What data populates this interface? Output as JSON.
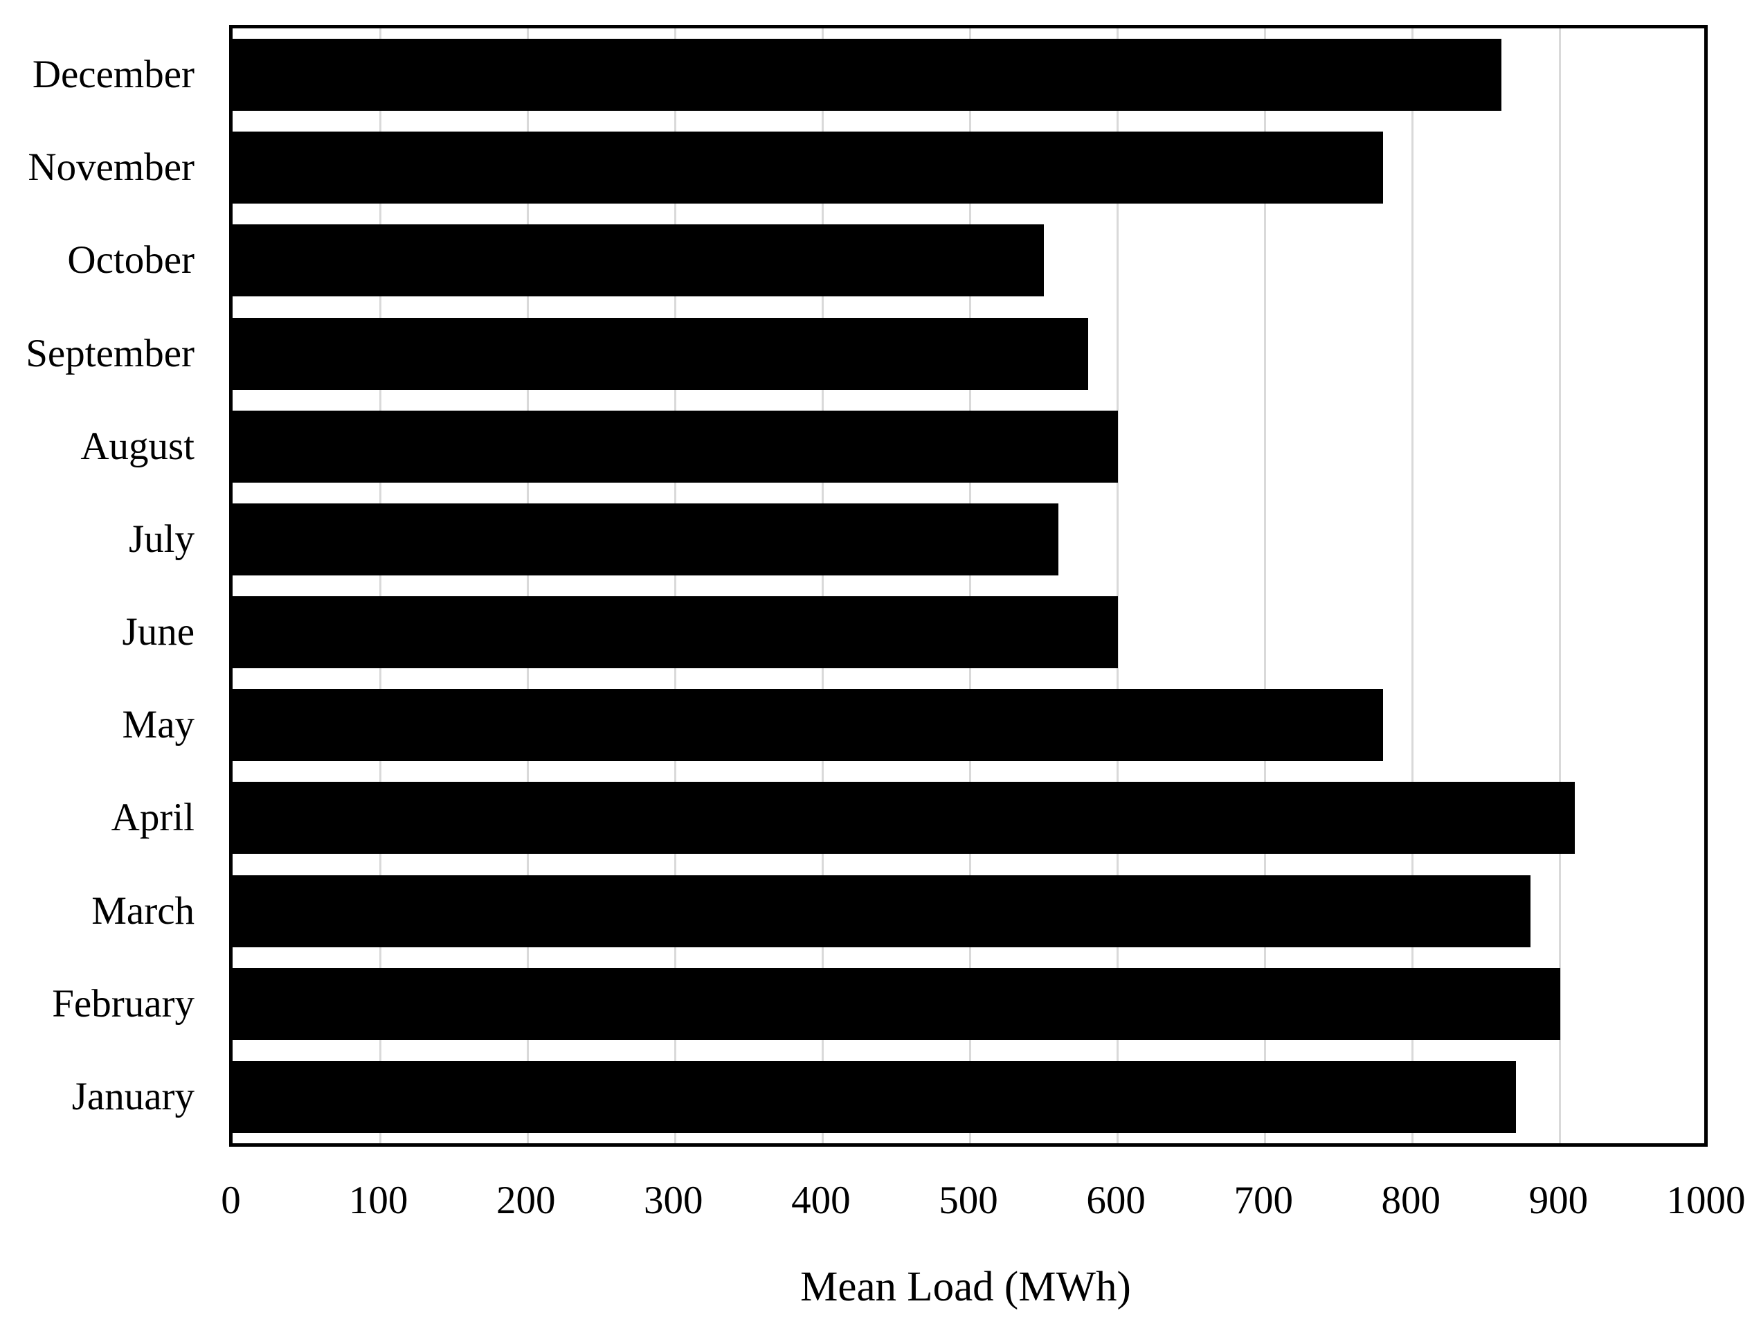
{
  "chart_data": {
    "type": "bar",
    "orientation": "horizontal",
    "title": "",
    "xlabel": "Mean Load (MWh)",
    "ylabel": "",
    "categories": [
      "January",
      "February",
      "March",
      "April",
      "May",
      "June",
      "July",
      "August",
      "September",
      "October",
      "November",
      "December"
    ],
    "values": [
      870,
      900,
      880,
      910,
      780,
      600,
      560,
      600,
      580,
      550,
      780,
      860
    ],
    "category_order_top_to_bottom": [
      "December",
      "November",
      "October",
      "September",
      "August",
      "July",
      "June",
      "May",
      "April",
      "March",
      "February",
      "January"
    ],
    "xlim": [
      0,
      1000
    ],
    "xtick_interval": 100,
    "xtick_labels": [
      "0",
      "100",
      "200",
      "300",
      "400",
      "500",
      "600",
      "700",
      "800",
      "900",
      "1000"
    ],
    "grid": "vertical-gridlines-every-100",
    "legend": "none",
    "colors": {
      "bar": "#000000",
      "gridline": "#d9d9d9",
      "plot_border": "#000000",
      "background": "#ffffff",
      "text": "#000000"
    }
  }
}
